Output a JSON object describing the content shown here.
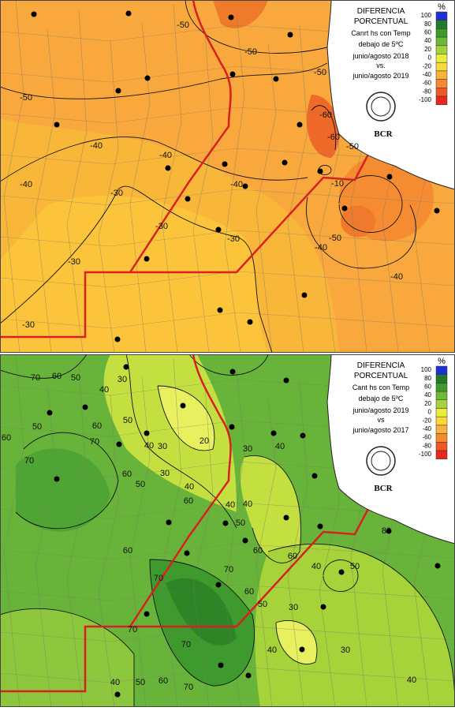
{
  "panels": [
    {
      "title": [
        "DIFERENCIA",
        "PORCENTUAL"
      ],
      "description": [
        "Canrt hs con Temp",
        "debajo de 5ºC",
        "junio/agosto 2018",
        "vs.",
        "junio/agosto 2019"
      ],
      "logo": "BCR",
      "legend": {
        "unit": "%",
        "labels": [
          "100",
          "80",
          "60",
          "40",
          "20",
          "0",
          "-20",
          "-40",
          "-60",
          "-80",
          "-100"
        ]
      },
      "contour_labels": [
        "-50",
        "-50",
        "-50",
        "-50",
        "-60",
        "-60",
        "-50",
        "-40",
        "-40",
        "-40",
        "-40",
        "-30",
        "-30",
        "-30",
        "-30",
        "-30",
        "-10",
        "-50",
        "-40",
        "-40"
      ]
    },
    {
      "title": [
        "DIFERENCIA",
        "PORCENTUAL"
      ],
      "description": [
        "Cant hs con Temp",
        "debajo de 5ºC",
        "junio/agosto 2019",
        "vs",
        "junio/agosto 2017"
      ],
      "logo": "BCR",
      "legend": {
        "unit": "%",
        "labels": [
          "100",
          "80",
          "60",
          "40",
          "20",
          "0",
          "-20",
          "-40",
          "-60",
          "-80",
          "-100"
        ]
      },
      "contour_labels": [
        "70",
        "60",
        "50",
        "30",
        "40",
        "60",
        "50",
        "50",
        "60",
        "40",
        "30",
        "20",
        "70",
        "70",
        "60",
        "40",
        "30",
        "30",
        "40",
        "60",
        "50",
        "40",
        "40",
        "50",
        "70",
        "60",
        "70",
        "60",
        "50",
        "70",
        "30",
        "30",
        "40",
        "50",
        "40",
        "60",
        "60",
        "70",
        "80",
        "40",
        "50",
        "60",
        "70",
        "40"
      ]
    }
  ]
}
